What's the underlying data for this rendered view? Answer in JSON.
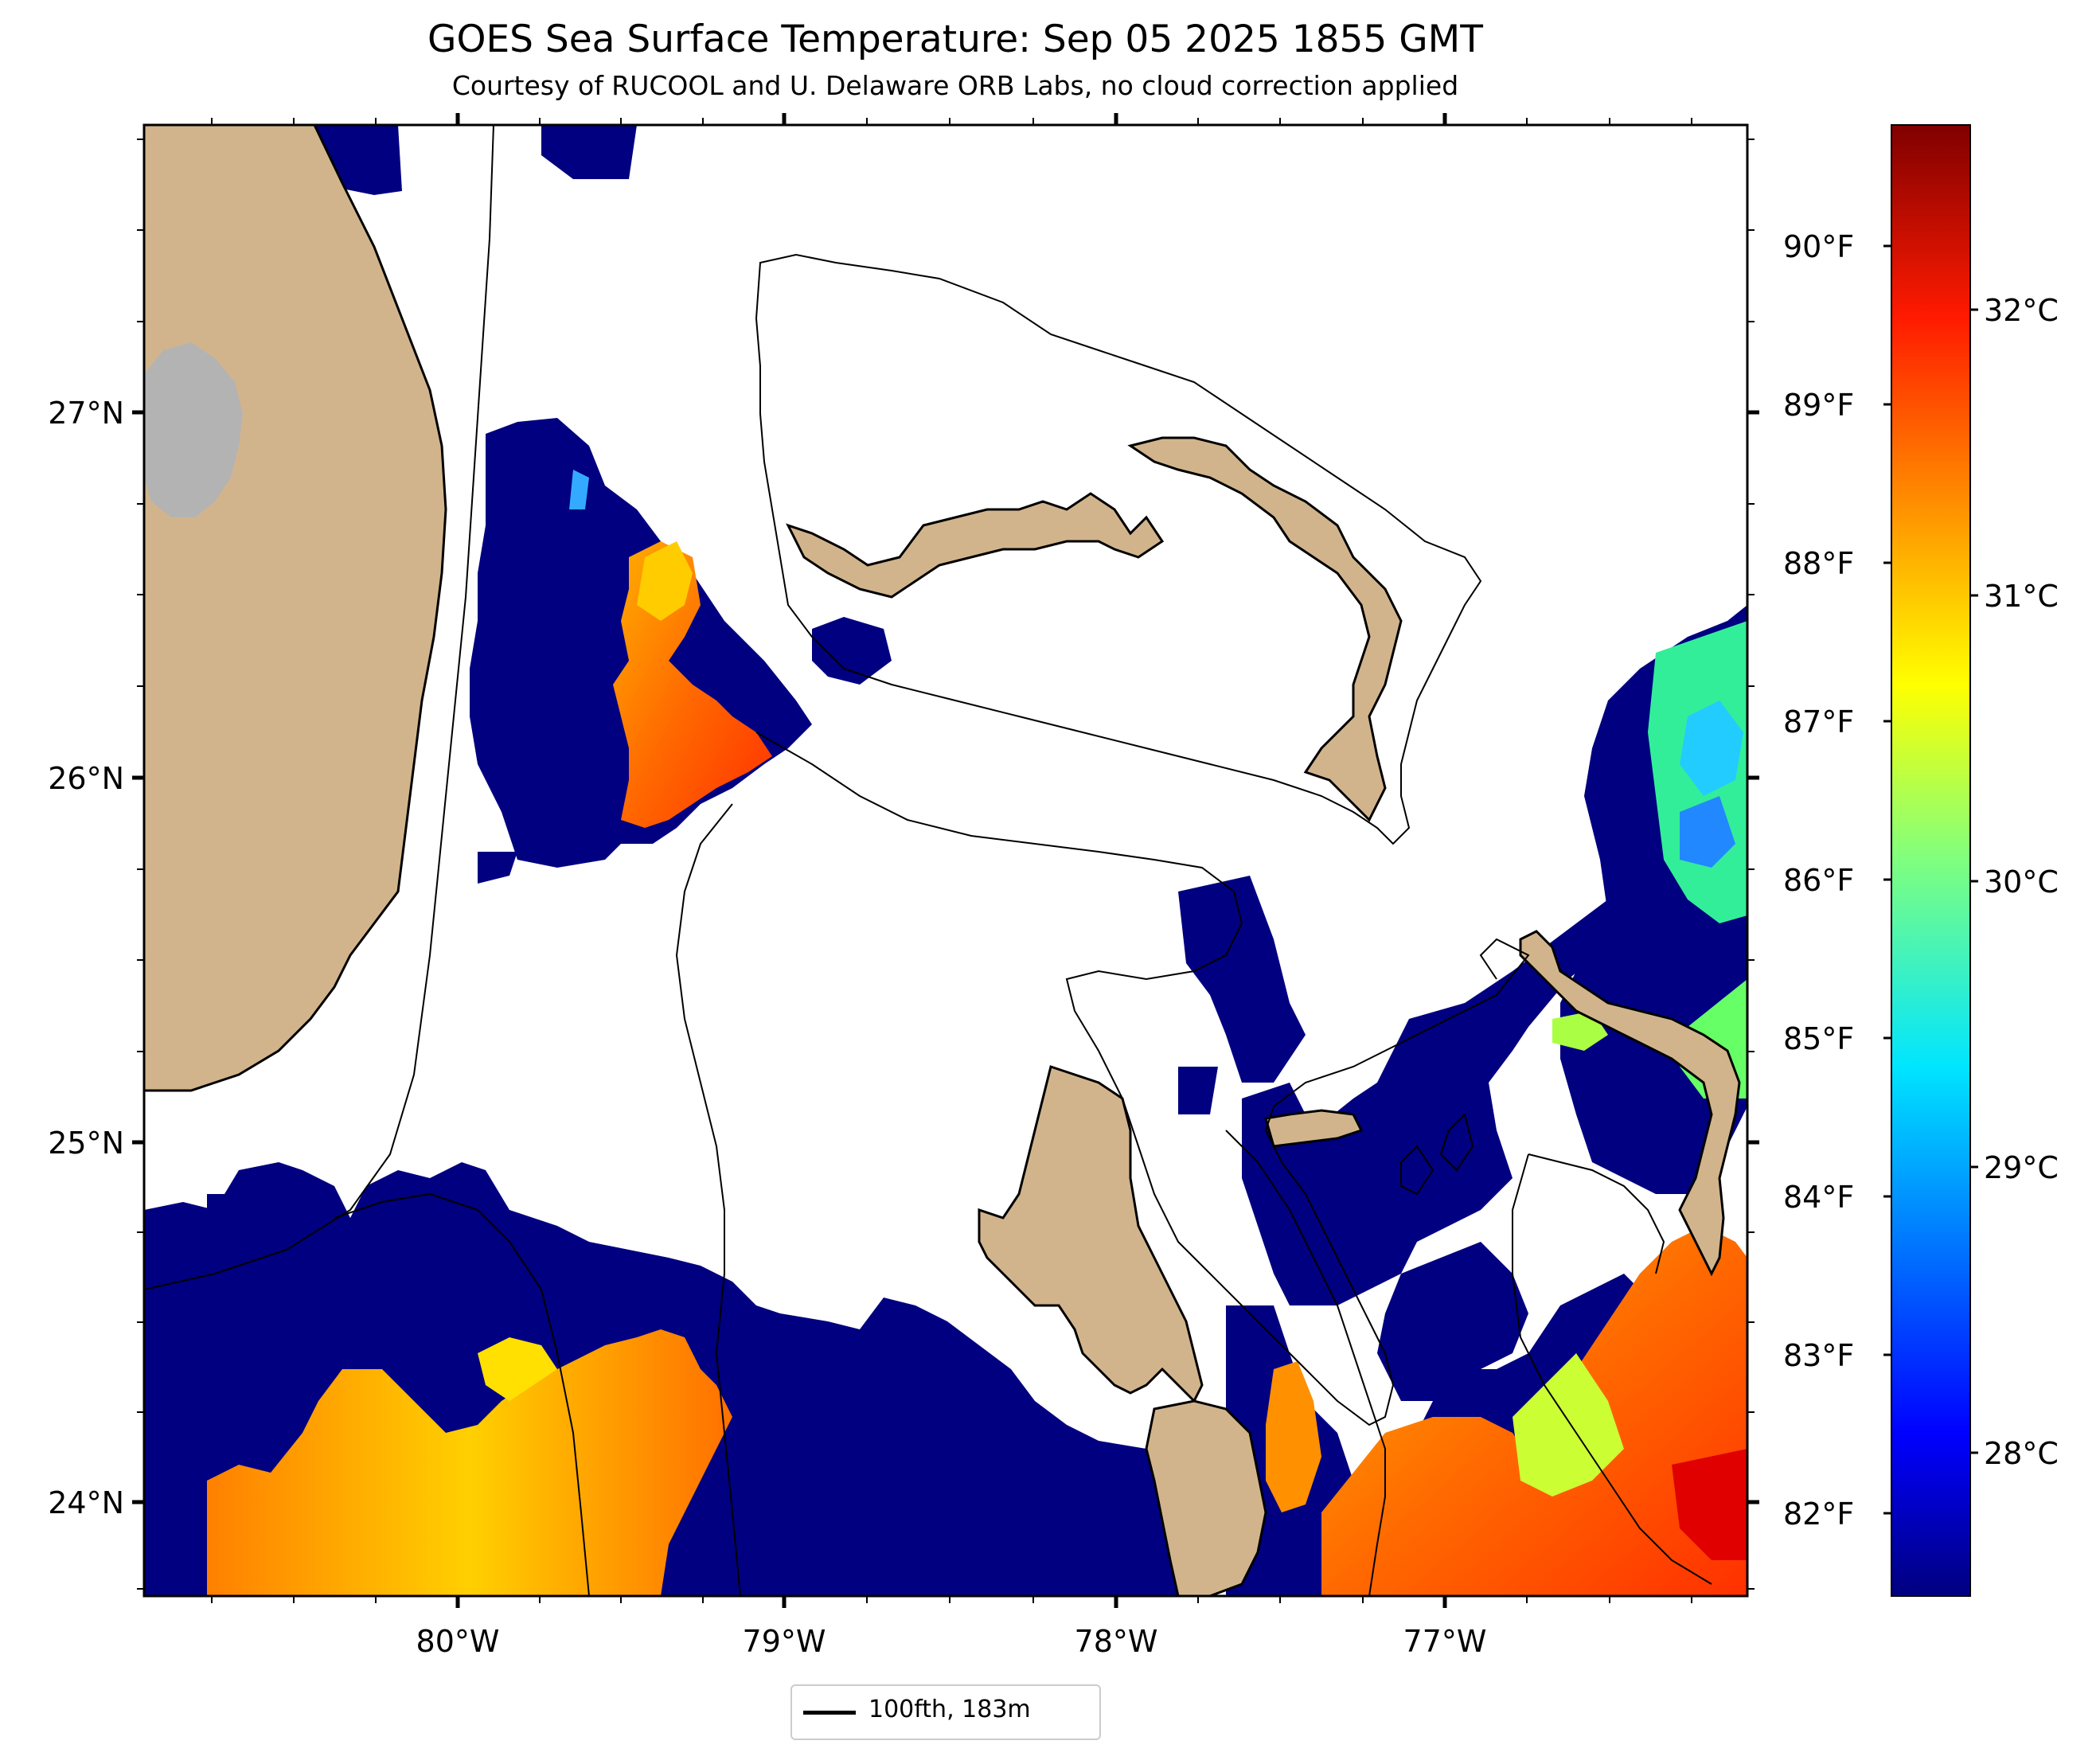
{
  "title": "GOES Sea Surface Temperature: Sep 05 2025 1855 GMT",
  "subtitle": "Courtesy of RUCOOL and U. Delaware ORB Labs, no cloud correction applied",
  "axes": {
    "lon_labels": [
      "80°W",
      "79°W",
      "78°W",
      "77°W"
    ],
    "lat_labels": [
      "27°N",
      "26°N",
      "25°N",
      "24°N"
    ]
  },
  "colorbar": {
    "fahrenheit_labels": [
      "90°F",
      "89°F",
      "88°F",
      "87°F",
      "86°F",
      "85°F",
      "84°F",
      "83°F",
      "82°F"
    ],
    "celsius_labels": [
      "32°C",
      "31°C",
      "30°C",
      "29°C",
      "28°C"
    ],
    "colormap": "jet"
  },
  "legend": {
    "label": "100fth, 183m"
  },
  "colors": {
    "land": "#d2b48c",
    "lake": "#b3b3b3",
    "cold_water": "#000080",
    "cloud_mask": "#ffffff"
  }
}
